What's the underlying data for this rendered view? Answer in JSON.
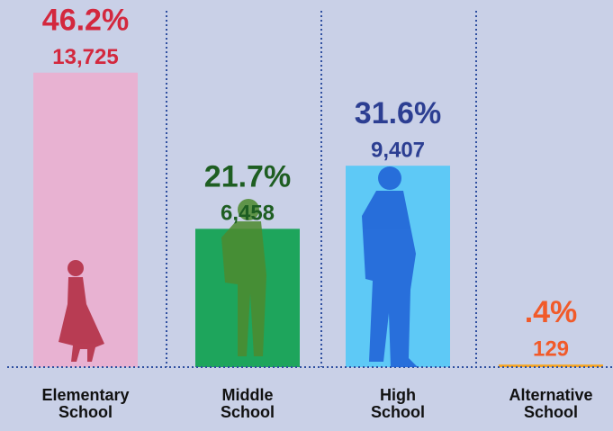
{
  "chart_data": {
    "type": "bar",
    "categories": [
      "Elementary School",
      "Middle School",
      "High School",
      "Alternative School"
    ],
    "values": [
      46.2,
      21.7,
      31.6,
      0.4
    ],
    "value_labels": [
      "46.2%",
      "21.7%",
      "31.6%",
      ".4%"
    ],
    "counts": [
      13725,
      6458,
      9407,
      129
    ],
    "count_labels": [
      "13,725",
      "6,458",
      "9,407",
      "129"
    ],
    "colors": [
      "#e8b2d2",
      "#1ea55c",
      "#5ec9f6",
      "#f5a524"
    ],
    "label_colors": [
      "#d3283e",
      "#1e5e22",
      "#2c3e92",
      "#f15a2a"
    ],
    "ylim": [
      0,
      48
    ]
  }
}
